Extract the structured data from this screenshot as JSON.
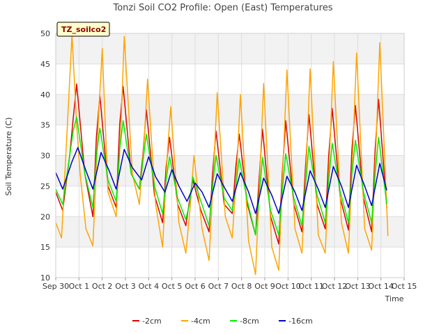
{
  "chart_data": {
    "type": "line",
    "title": "Tonzi Soil CO2 Profile: Open (East) Temperatures",
    "xlabel": "Time",
    "ylabel": "Soil Temperature (C)",
    "badge": "TZ_soilco2",
    "xlim": [
      0,
      15
    ],
    "ylim": [
      10,
      50
    ],
    "x_ticks": [
      0,
      1,
      2,
      3,
      4,
      5,
      6,
      7,
      8,
      9,
      10,
      11,
      12,
      13,
      14,
      15
    ],
    "x_tick_labels": [
      "Sep 30",
      "Oct 1",
      "Oct 2",
      "Oct 3",
      "Oct 4",
      "Oct 5",
      "Oct 6",
      "Oct 7",
      "Oct 8",
      "Oct 9",
      "Oct 10",
      "Oct 11",
      "Oct 12",
      "Oct 13",
      "Oct 14",
      "Oct 15"
    ],
    "y_ticks": [
      10,
      15,
      20,
      25,
      30,
      35,
      40,
      45,
      50
    ],
    "legend_position": "bottom",
    "series": [
      {
        "name": "-2cm",
        "color": "#dd0000",
        "x": [
          0.0,
          0.3,
          0.6,
          0.75,
          0.9,
          1.25,
          1.6,
          1.75,
          1.9,
          2.25,
          2.6,
          2.75,
          2.9,
          3.25,
          3.6,
          3.75,
          3.9,
          4.25,
          4.6,
          4.75,
          4.9,
          5.25,
          5.6,
          5.75,
          5.9,
          6.25,
          6.6,
          6.75,
          6.9,
          7.25,
          7.6,
          7.75,
          7.9,
          8.25,
          8.6,
          8.75,
          8.9,
          9.25,
          9.6,
          9.75,
          9.9,
          10.25,
          10.6,
          10.75,
          10.9,
          11.25,
          11.6,
          11.75,
          11.9,
          12.25,
          12.6,
          12.75,
          12.9,
          13.25,
          13.6,
          13.75,
          13.9,
          14.25
        ],
        "y": [
          24.0,
          21.0,
          30.0,
          36.0,
          41.7,
          27.0,
          20.0,
          33.0,
          39.8,
          25.0,
          21.5,
          35.0,
          41.3,
          27.0,
          24.5,
          30.0,
          37.5,
          23.5,
          19.0,
          28.0,
          33.0,
          22.0,
          18.5,
          22.5,
          26.0,
          21.0,
          17.5,
          27.0,
          34.0,
          22.0,
          20.5,
          28.0,
          33.5,
          22.0,
          17.0,
          26.0,
          34.3,
          20.0,
          15.5,
          27.0,
          35.7,
          22.0,
          17.5,
          28.0,
          36.7,
          22.0,
          18.0,
          30.0,
          37.7,
          23.0,
          17.8,
          31.0,
          38.2,
          23.0,
          17.5,
          31.0,
          39.2,
          21.5
        ]
      },
      {
        "name": "-4cm",
        "color": "#ffa500",
        "x": [
          0.0,
          0.25,
          0.5,
          0.7,
          0.9,
          1.05,
          1.3,
          1.6,
          1.85,
          2.0,
          2.25,
          2.6,
          2.8,
          2.95,
          3.3,
          3.6,
          3.8,
          3.95,
          4.3,
          4.6,
          4.8,
          4.95,
          5.3,
          5.6,
          5.8,
          5.95,
          6.3,
          6.6,
          6.8,
          6.95,
          7.3,
          7.6,
          7.8,
          7.95,
          8.3,
          8.6,
          8.8,
          8.95,
          9.3,
          9.6,
          9.8,
          9.95,
          10.3,
          10.6,
          10.8,
          10.95,
          11.3,
          11.6,
          11.8,
          11.95,
          12.3,
          12.6,
          12.8,
          12.95,
          13.3,
          13.6,
          13.8,
          13.95,
          14.3
        ],
        "y": [
          19.0,
          16.5,
          35.0,
          49.8,
          35.0,
          27.0,
          18.0,
          15.2,
          37.0,
          47.5,
          24.0,
          20.0,
          34.0,
          49.5,
          27.0,
          22.0,
          32.0,
          42.5,
          22.0,
          15.0,
          30.0,
          38.0,
          19.0,
          14.0,
          22.0,
          30.0,
          18.0,
          12.8,
          28.0,
          40.3,
          20.0,
          16.5,
          28.0,
          40.0,
          16.0,
          10.5,
          28.0,
          41.8,
          15.0,
          11.2,
          30.0,
          44.0,
          18.0,
          14.0,
          30.0,
          44.2,
          17.0,
          14.0,
          31.0,
          45.4,
          19.0,
          14.0,
          32.0,
          46.8,
          18.0,
          14.5,
          33.0,
          48.5,
          16.8
        ]
      },
      {
        "name": "-8cm",
        "color": "#00ee00",
        "x": [
          0.0,
          0.3,
          0.6,
          0.75,
          0.9,
          1.25,
          1.6,
          1.75,
          1.9,
          2.25,
          2.6,
          2.75,
          2.9,
          3.25,
          3.6,
          3.75,
          3.9,
          4.25,
          4.6,
          4.75,
          4.9,
          5.25,
          5.6,
          5.75,
          5.9,
          6.25,
          6.6,
          6.75,
          6.9,
          7.25,
          7.6,
          7.75,
          7.9,
          8.25,
          8.6,
          8.75,
          8.9,
          9.25,
          9.6,
          9.75,
          9.9,
          10.25,
          10.6,
          10.75,
          10.9,
          11.25,
          11.6,
          11.75,
          11.9,
          12.25,
          12.6,
          12.75,
          12.9,
          13.25,
          13.6,
          13.75,
          13.9,
          14.25
        ],
        "y": [
          24.5,
          22.0,
          30.0,
          34.0,
          36.3,
          27.0,
          21.5,
          30.0,
          34.5,
          26.0,
          22.5,
          31.0,
          35.7,
          27.0,
          24.5,
          29.0,
          33.5,
          25.0,
          20.5,
          26.0,
          29.8,
          23.0,
          19.5,
          22.0,
          26.5,
          22.5,
          18.5,
          25.0,
          30.0,
          23.0,
          21.0,
          25.0,
          29.5,
          22.5,
          17.0,
          23.0,
          29.7,
          21.0,
          17.0,
          24.0,
          30.3,
          23.0,
          18.5,
          25.0,
          31.5,
          23.5,
          19.0,
          26.0,
          32.0,
          24.0,
          19.0,
          27.0,
          32.5,
          24.0,
          19.0,
          27.0,
          33.0,
          22.0
        ]
      },
      {
        "name": "-16cm",
        "color": "#0000cc",
        "x": [
          0.0,
          0.3,
          0.7,
          0.95,
          1.3,
          1.6,
          1.95,
          2.3,
          2.6,
          2.95,
          3.3,
          3.7,
          4.0,
          4.3,
          4.7,
          5.0,
          5.3,
          5.65,
          6.0,
          6.3,
          6.6,
          6.95,
          7.3,
          7.6,
          7.95,
          8.3,
          8.6,
          8.95,
          9.3,
          9.6,
          9.95,
          10.3,
          10.6,
          10.95,
          11.3,
          11.6,
          11.95,
          12.3,
          12.6,
          12.95,
          13.3,
          13.6,
          13.95,
          14.25
        ],
        "y": [
          27.2,
          24.5,
          29.0,
          31.3,
          27.5,
          24.5,
          30.5,
          27.5,
          24.5,
          31.0,
          28.0,
          26.0,
          29.8,
          26.5,
          24.0,
          27.7,
          25.0,
          22.5,
          25.5,
          24.0,
          21.5,
          27.0,
          24.5,
          22.5,
          27.2,
          24.0,
          20.5,
          26.3,
          23.5,
          20.5,
          26.6,
          24.0,
          21.0,
          27.5,
          24.5,
          21.5,
          28.2,
          25.0,
          21.5,
          28.4,
          25.0,
          21.8,
          28.7,
          24.3
        ]
      }
    ]
  }
}
